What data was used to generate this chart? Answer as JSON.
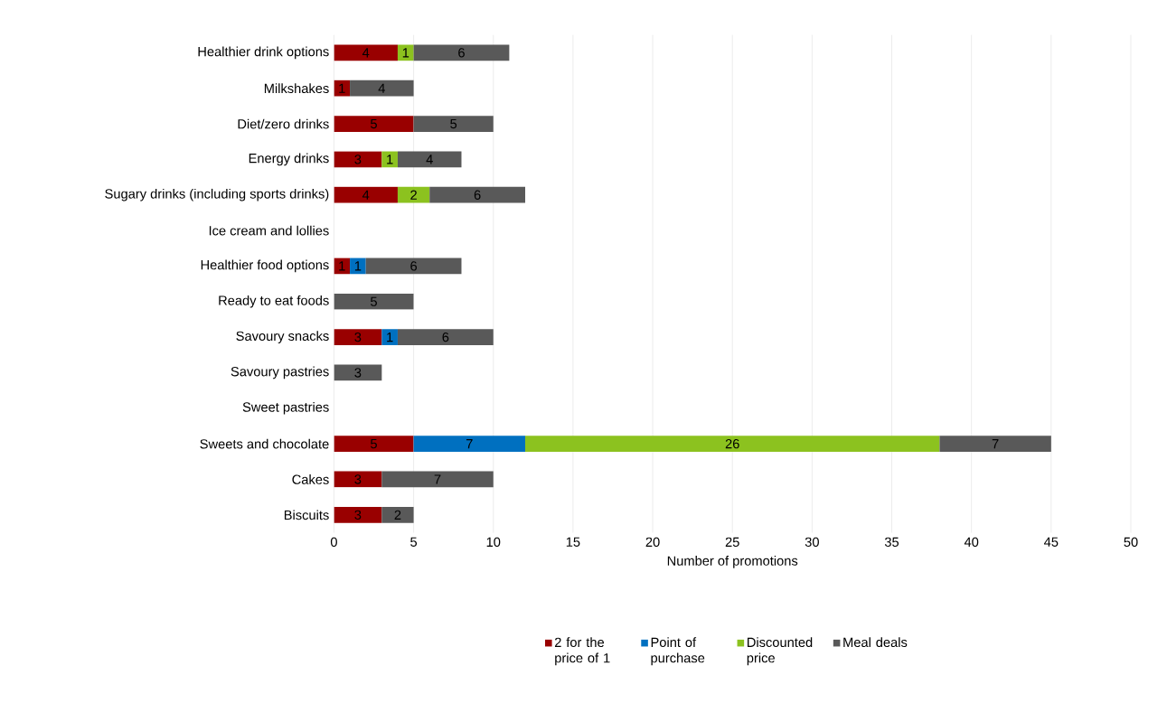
{
  "chart_data": {
    "type": "bar",
    "orientation": "horizontal",
    "stacked": true,
    "xlabel": "Number of promotions",
    "categories": [
      "Healthier drink options",
      "Milkshakes",
      "Diet/zero drinks",
      "Energy drinks",
      "Sugary drinks (including sports drinks)",
      "Ice cream and lollies",
      "Healthier food options",
      "Ready to eat foods",
      "Savoury snacks",
      "Savoury pastries",
      "Sweet pastries",
      "Sweets and chocolate",
      "Cakes",
      "Biscuits"
    ],
    "series": [
      {
        "name": "2 for the price of 1",
        "color": "#990000",
        "values": [
          4,
          1,
          5,
          3,
          4,
          null,
          1,
          null,
          3,
          null,
          null,
          5,
          3,
          3
        ]
      },
      {
        "name": "Point of purchase",
        "color": "#0070c0",
        "values": [
          null,
          null,
          null,
          null,
          null,
          null,
          1,
          null,
          1,
          null,
          null,
          7,
          null,
          null
        ]
      },
      {
        "name": "Discounted price",
        "color": "#8cc21f",
        "values": [
          1,
          null,
          null,
          1,
          2,
          null,
          null,
          null,
          null,
          null,
          null,
          26,
          null,
          null
        ]
      },
      {
        "name": "Meal deals",
        "color": "#595959",
        "values": [
          6,
          4,
          5,
          4,
          6,
          null,
          6,
          5,
          6,
          3,
          null,
          7,
          7,
          2
        ]
      }
    ],
    "xlim": [
      0,
      50
    ],
    "xticks": [
      0,
      5,
      10,
      15,
      20,
      25,
      30,
      35,
      40,
      45,
      50
    ],
    "grid": "x",
    "legend": "bottom",
    "data_labels": true
  }
}
